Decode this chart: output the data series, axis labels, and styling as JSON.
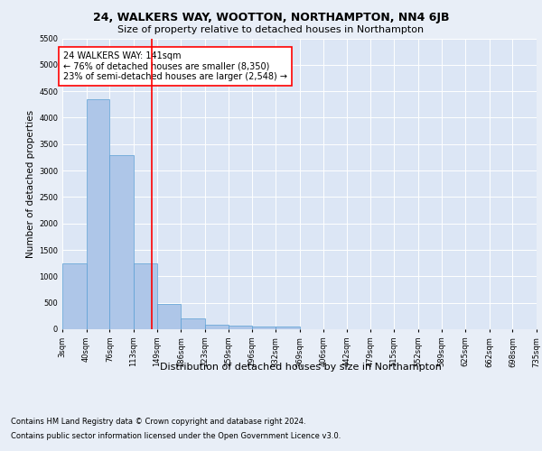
{
  "title1": "24, WALKERS WAY, WOOTTON, NORTHAMPTON, NN4 6JB",
  "title2": "Size of property relative to detached houses in Northampton",
  "xlabel": "Distribution of detached houses by size in Northampton",
  "ylabel": "Number of detached properties",
  "footnote1": "Contains HM Land Registry data © Crown copyright and database right 2024.",
  "footnote2": "Contains public sector information licensed under the Open Government Licence v3.0.",
  "property_size": 141,
  "annotation_line1": "24 WALKERS WAY: 141sqm",
  "annotation_line2": "← 76% of detached houses are smaller (8,350)",
  "annotation_line3": "23% of semi-detached houses are larger (2,548) →",
  "bar_edges": [
    3,
    40,
    76,
    113,
    149,
    186,
    223,
    259,
    296,
    332,
    369,
    406,
    442,
    479,
    515,
    552,
    589,
    625,
    662,
    698,
    735
  ],
  "bar_heights": [
    1250,
    4350,
    3300,
    1250,
    480,
    210,
    90,
    70,
    55,
    55,
    0,
    0,
    0,
    0,
    0,
    0,
    0,
    0,
    0,
    0
  ],
  "bar_color": "#aec6e8",
  "bar_edgecolor": "#5a9fd4",
  "vline_x": 141,
  "vline_color": "red",
  "ylim": [
    0,
    5500
  ],
  "yticks": [
    0,
    500,
    1000,
    1500,
    2000,
    2500,
    3000,
    3500,
    4000,
    4500,
    5000,
    5500
  ],
  "bg_color": "#e8eef7",
  "plot_bg_color": "#dce6f5",
  "annotation_box_color": "red",
  "title1_fontsize": 9,
  "title2_fontsize": 8,
  "xlabel_fontsize": 8,
  "ylabel_fontsize": 7.5,
  "tick_fontsize": 6,
  "annotation_fontsize": 7,
  "footnote_fontsize": 6
}
